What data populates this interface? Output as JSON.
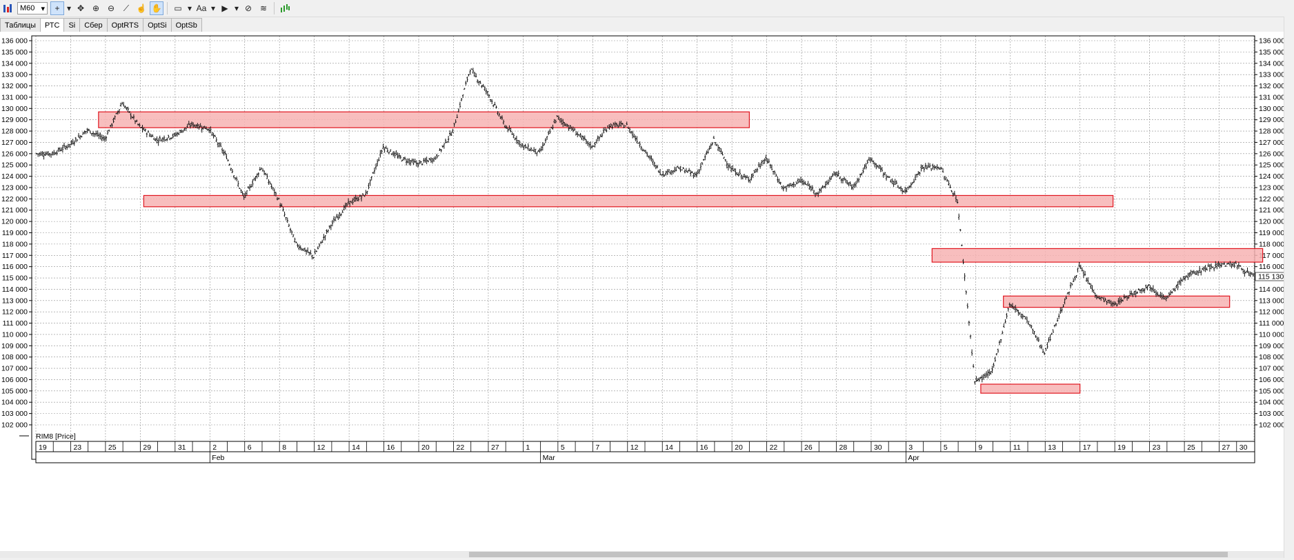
{
  "toolbar": {
    "timeframe": "M60",
    "font_button": "Aa",
    "icons": [
      "chart-icon",
      "crosshair-icon",
      "move-icon",
      "zoom-in-icon",
      "zoom-out-icon",
      "ruler-icon",
      "hand-icon",
      "pan-icon",
      "rectangle-icon",
      "text-icon",
      "arrow-icon",
      "hide-icon",
      "layers-icon",
      "indicator-icon"
    ]
  },
  "tabs": [
    {
      "label": "Таблицы",
      "active": false
    },
    {
      "label": "РТС",
      "active": true
    },
    {
      "label": "Si",
      "active": false
    },
    {
      "label": "Сбер",
      "active": false
    },
    {
      "label": "OptRTS",
      "active": false
    },
    {
      "label": "OptSi",
      "active": false
    },
    {
      "label": "OptSb",
      "active": false
    }
  ],
  "legend": {
    "label": "RIM8 [Price]"
  },
  "price_box": "115 130",
  "month_labels": [
    {
      "label": "Feb",
      "day_index": 10
    },
    {
      "label": "Mar",
      "day_index": 29
    },
    {
      "label": "Apr",
      "day_index": 50
    }
  ],
  "colors": {
    "zone_fill": "#f7b3b3",
    "zone_stroke": "#e0141e",
    "price": "#111111",
    "grid": "#8c8c8c"
  },
  "chart_data": {
    "type": "line",
    "series": [
      {
        "name": "RIM8 [Price]",
        "x": [
          "19",
          "22",
          "23",
          "24",
          "25",
          "26",
          "29",
          "30",
          "31",
          "1",
          "2",
          "5",
          "6",
          "7",
          "8",
          "9",
          "12",
          "13",
          "14",
          "15",
          "16",
          "19",
          "20",
          "21",
          "22",
          "26",
          "27",
          "28",
          "1",
          "2",
          "5",
          "6",
          "7",
          "9",
          "12",
          "13",
          "14",
          "15",
          "16",
          "19",
          "20",
          "21",
          "22",
          "23",
          "26",
          "27",
          "28",
          "29",
          "30",
          "2",
          "3",
          "4",
          "5",
          "6",
          "9",
          "10",
          "11",
          "12",
          "13",
          "16",
          "17",
          "18",
          "19",
          "20",
          "23",
          "24",
          "25",
          "26",
          "27",
          "30"
        ],
        "values": [
          126000,
          126800,
          128100,
          127300,
          130500,
          128400,
          127200,
          127600,
          128600,
          128200,
          125700,
          122100,
          124800,
          121900,
          118000,
          116900,
          119700,
          121600,
          122400,
          126600,
          125600,
          125100,
          125600,
          128000,
          133500,
          131400,
          128500,
          126700,
          126100,
          129200,
          128000,
          126600,
          128500,
          128500,
          126300,
          124200,
          124700,
          124100,
          127200,
          124600,
          123700,
          125600,
          122900,
          123600,
          122500,
          124300,
          123000,
          125600,
          123900,
          122600,
          124800,
          124800,
          121800,
          105800,
          106700,
          112700,
          111300,
          108400,
          112300,
          116000,
          113400,
          112600,
          113600,
          114300,
          113100,
          115000,
          115700,
          116200,
          116200,
          115100
        ]
      }
    ],
    "x_tick_labels": [
      "19",
      "23",
      "25",
      "29",
      "31",
      "2",
      "6",
      "8",
      "12",
      "14",
      "16",
      "20",
      "22",
      "27",
      "1",
      "5",
      "7",
      "12",
      "14",
      "16",
      "20",
      "22",
      "26",
      "28",
      "30",
      "3",
      "5",
      "9",
      "11",
      "13",
      "17",
      "19",
      "23",
      "25",
      "27",
      "30"
    ],
    "y_tick_labels": [
      "102 000",
      "103 000",
      "104 000",
      "105 000",
      "106 000",
      "107 000",
      "108 000",
      "109 000",
      "110 000",
      "111 000",
      "112 000",
      "113 000",
      "114 000",
      "115 000",
      "116 000",
      "117 000",
      "118 000",
      "119 000",
      "120 000",
      "121 000",
      "122 000",
      "123 000",
      "124 000",
      "125 000",
      "126 000",
      "127 000",
      "128 000",
      "129 000",
      "130 000",
      "131 000",
      "132 000",
      "133 000",
      "134 000",
      "135 000",
      "136 000"
    ],
    "ylim": [
      102000,
      136000
    ],
    "y_tick_values": [
      102000,
      103000,
      104000,
      105000,
      106000,
      107000,
      108000,
      109000,
      110000,
      111000,
      112000,
      113000,
      114000,
      115000,
      116000,
      117000,
      118000,
      119000,
      120000,
      121000,
      122000,
      123000,
      124000,
      125000,
      126000,
      127000,
      128000,
      129000,
      130000,
      131000,
      132000,
      133000,
      134000,
      135000,
      136000
    ],
    "grid": true,
    "zones": [
      {
        "from_day": 3.6,
        "to_day": 41,
        "low": 128300,
        "high": 129700
      },
      {
        "from_day": 6.2,
        "to_day": 61.9,
        "low": 121300,
        "high": 122300
      },
      {
        "from_day": 51.5,
        "to_day": 70.5,
        "low": 116400,
        "high": 117600
      },
      {
        "from_day": 54.3,
        "to_day": 60,
        "low": 104800,
        "high": 105600
      },
      {
        "from_day": 55.6,
        "to_day": 68.6,
        "low": 112400,
        "high": 113400
      }
    ]
  }
}
